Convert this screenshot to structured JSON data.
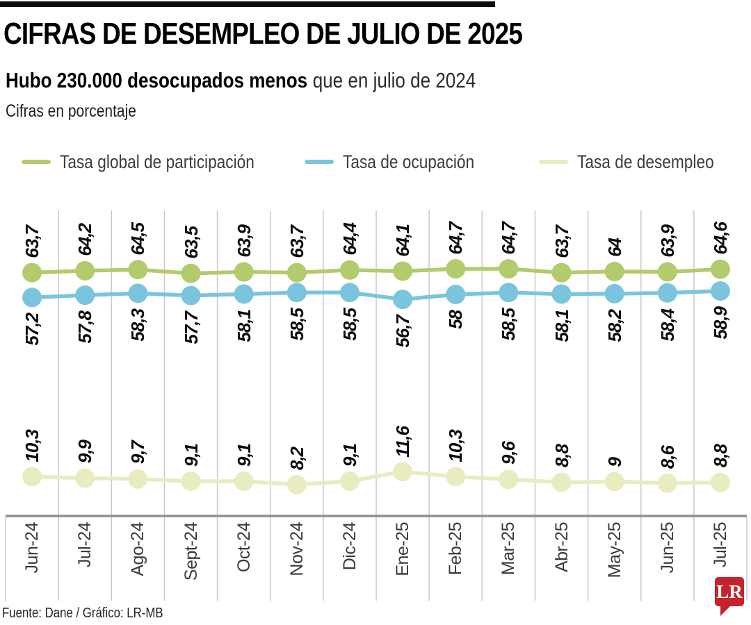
{
  "header": {
    "title": "CIFRAS DE DESEMPLEO DE JULIO DE 2025",
    "subtitle_bold": "Hubo 230.000 desocupados menos",
    "subtitle_rest": "que en julio de 2024",
    "units_note": "Cifras en porcentaje"
  },
  "legend": [
    {
      "label": "Tasa global de participación",
      "color": "#b3cb6d"
    },
    {
      "label": "Tasa de ocupación",
      "color": "#7ac5dd"
    },
    {
      "label": "Tasa de desempleo",
      "color": "#e9ecc1"
    }
  ],
  "chart_data": {
    "type": "line",
    "title": "Cifras de desempleo de julio de 2025",
    "xlabel": "",
    "ylabel": "Cifras en porcentaje",
    "ylim": [
      0,
      84
    ],
    "grid": "vertical",
    "legend_position": "top",
    "decimal_separator": ",",
    "categories": [
      "Jun-24",
      "Jul-24",
      "Ago-24",
      "Sept-24",
      "Oct-24",
      "Nov-24",
      "Dic-24",
      "Ene-25",
      "Feb-25",
      "Mar-25",
      "Abr-25",
      "May-25",
      "Jun-25",
      "Jul-25"
    ],
    "series": [
      {
        "name": "Tasa global de participación",
        "color": "#b3cb6d",
        "label_position": "above",
        "values": [
          63.7,
          64.2,
          64.5,
          63.5,
          63.9,
          63.7,
          64.4,
          64.1,
          64.7,
          64.7,
          63.7,
          64,
          63.9,
          64.6
        ]
      },
      {
        "name": "Tasa de ocupación",
        "color": "#7ac5dd",
        "label_position": "below",
        "values": [
          57.2,
          57.8,
          58.3,
          57.7,
          58.1,
          58.5,
          58.5,
          56.7,
          58,
          58.5,
          58.1,
          58.2,
          58.4,
          58.9
        ]
      },
      {
        "name": "Tasa de desempleo",
        "color": "#e9ecc1",
        "label_position": "above",
        "values": [
          10.3,
          9.9,
          9.7,
          9.1,
          9.1,
          8.2,
          9.1,
          11.6,
          10.3,
          9.6,
          8.8,
          9,
          8.6,
          8.8
        ]
      }
    ],
    "style": {
      "gridline_color": "#c9c9c9",
      "axis_color": "#8f8f8f",
      "logo_color": "#c5242c"
    }
  },
  "footer": {
    "source": "Fuente: Dane / Gráfico: LR-MB",
    "logo_text": "LR"
  }
}
